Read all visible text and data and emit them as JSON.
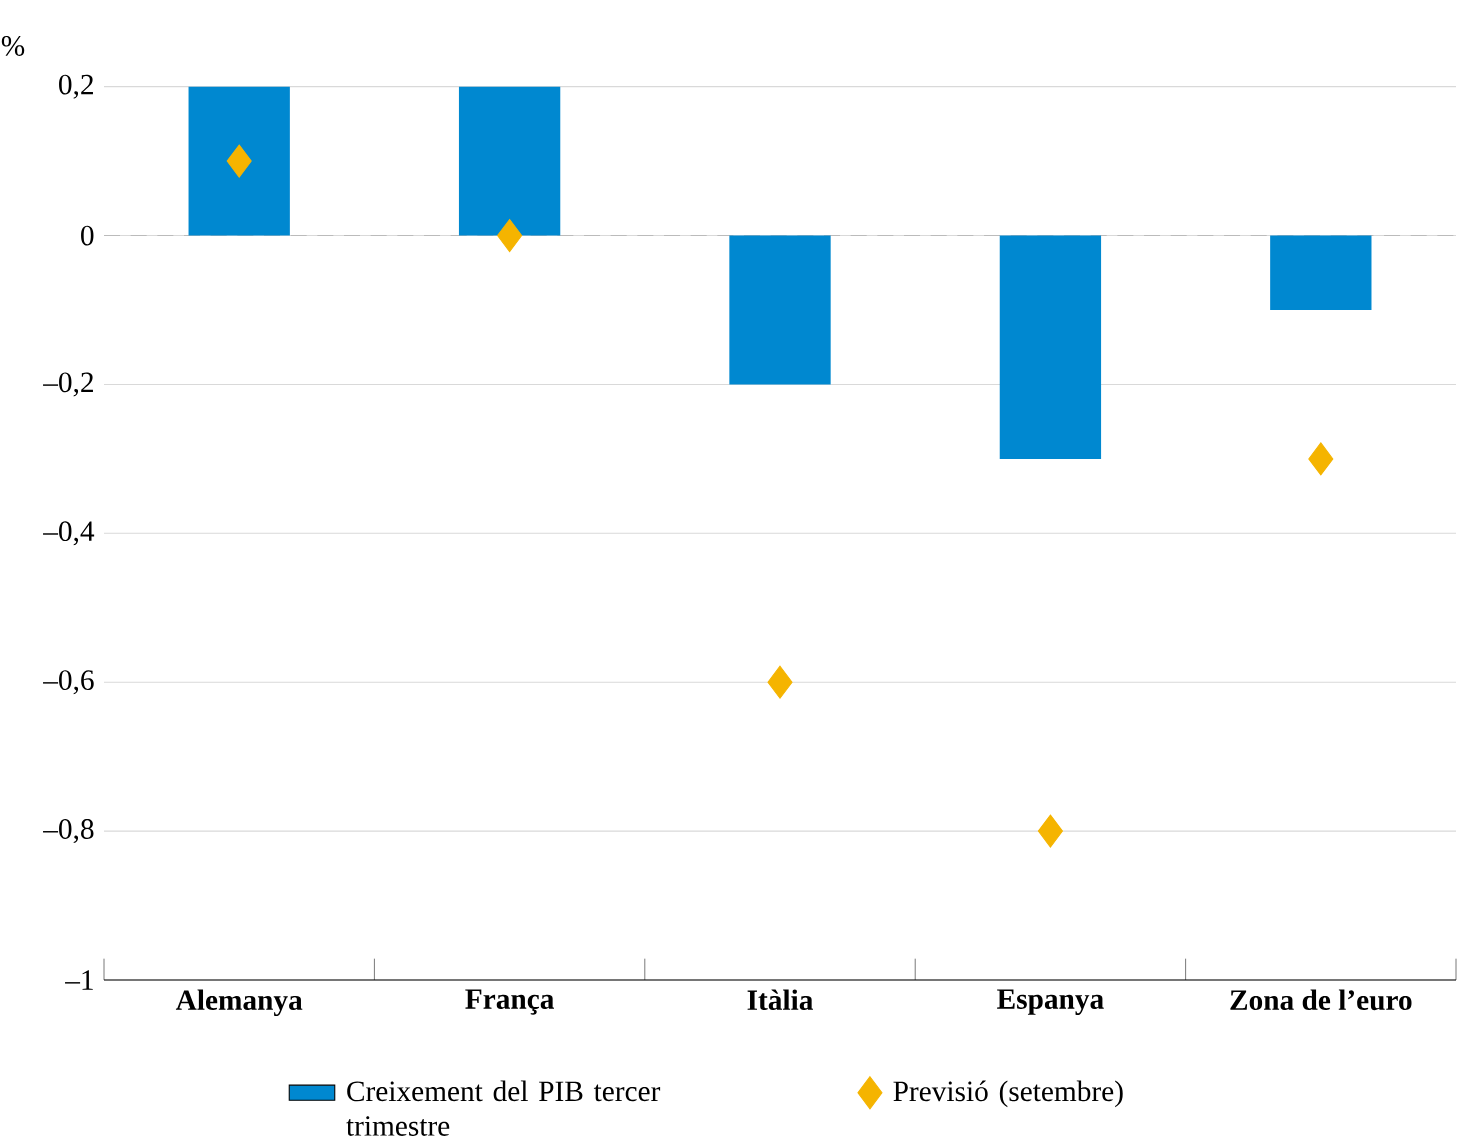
{
  "chart_data": {
    "type": "bar",
    "ylabel": "%",
    "categories": [
      "Alemanya",
      "França",
      "Itàlia",
      "Espanya",
      "Zona de l’euro"
    ],
    "series": [
      {
        "name": "Creixement del PIB tercer trimestre",
        "color": "#0088d0",
        "values": [
          0.2,
          0.2,
          -0.2,
          -0.3,
          -0.1
        ]
      },
      {
        "name": "Previsió (setembre)",
        "type": "scatter",
        "color": "#f5b400",
        "values": [
          0.1,
          0,
          -0.6,
          -0.8,
          -0.3
        ]
      }
    ],
    "ylim": [
      -1,
      0.2
    ],
    "yticks": [
      {
        "value": -1,
        "label": "–1"
      },
      {
        "value": -0.8,
        "label": "–0,8"
      },
      {
        "value": -0.6,
        "label": "–0,6"
      },
      {
        "value": -0.4,
        "label": "–0,4"
      },
      {
        "value": -0.2,
        "label": "–0,2"
      },
      {
        "value": 0,
        "label": "0"
      },
      {
        "value": 0.2,
        "label": "0,2"
      }
    ],
    "grid": "y",
    "legend": "bottom",
    "marker": "diamond",
    "ref_lines": [
      {
        "axis": "y",
        "value": 0,
        "color": "#bbbbbb",
        "line_style": "dashed"
      }
    ]
  }
}
